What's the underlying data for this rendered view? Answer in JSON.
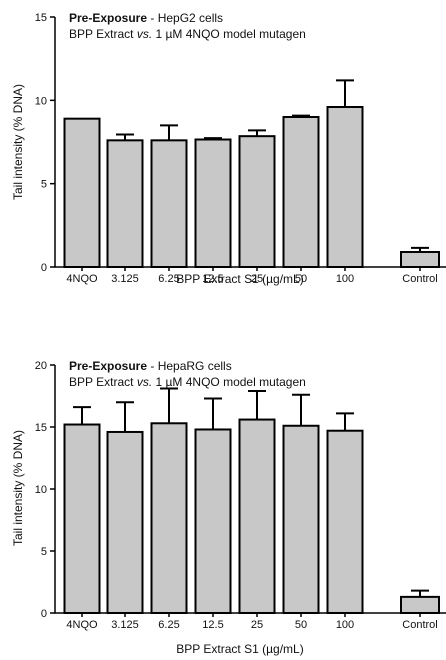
{
  "chart_data": [
    {
      "type": "bar",
      "title_bold": "Pre-Exposure",
      "title_rest": " - HepG2 cells",
      "subtitle_a": "BPP Extract ",
      "subtitle_vs": "vs.",
      "subtitle_b": " 1 µM 4NQO model mutagen",
      "xlabel": "BPP Extract S1 (µg/mL)",
      "ylabel": "Tail intensity (% DNA)",
      "ylim": [
        0,
        15
      ],
      "yticks": [
        0,
        5,
        10,
        15
      ],
      "categories": [
        "4NQO",
        "3.125",
        "6.25",
        "12.5",
        "25",
        "50",
        "100",
        "Control"
      ],
      "values": [
        8.9,
        7.6,
        7.6,
        7.65,
        7.85,
        9.0,
        9.6,
        0.9
      ],
      "errors": [
        0.0,
        0.35,
        0.9,
        0.08,
        0.35,
        0.08,
        1.6,
        0.25
      ],
      "grid": false
    },
    {
      "type": "bar",
      "title_bold": "Pre-Exposure",
      "title_rest": " - HepaRG cells",
      "subtitle_a": "BPP Extract ",
      "subtitle_vs": "vs.",
      "subtitle_b": " 1 µM 4NQO model mutagen",
      "xlabel": "BPP Extract S1 (µg/mL)",
      "ylabel": "Tail intensity (% DNA)",
      "ylim": [
        0,
        20
      ],
      "yticks": [
        0,
        5,
        10,
        15,
        20
      ],
      "categories": [
        "4NQO",
        "3.125",
        "6.25",
        "12.5",
        "25",
        "50",
        "100",
        "Control"
      ],
      "values": [
        15.2,
        14.6,
        15.3,
        14.8,
        15.6,
        15.1,
        14.7,
        1.3
      ],
      "errors": [
        1.4,
        2.4,
        2.8,
        2.5,
        2.3,
        2.5,
        1.4,
        0.5
      ],
      "grid": false
    }
  ]
}
